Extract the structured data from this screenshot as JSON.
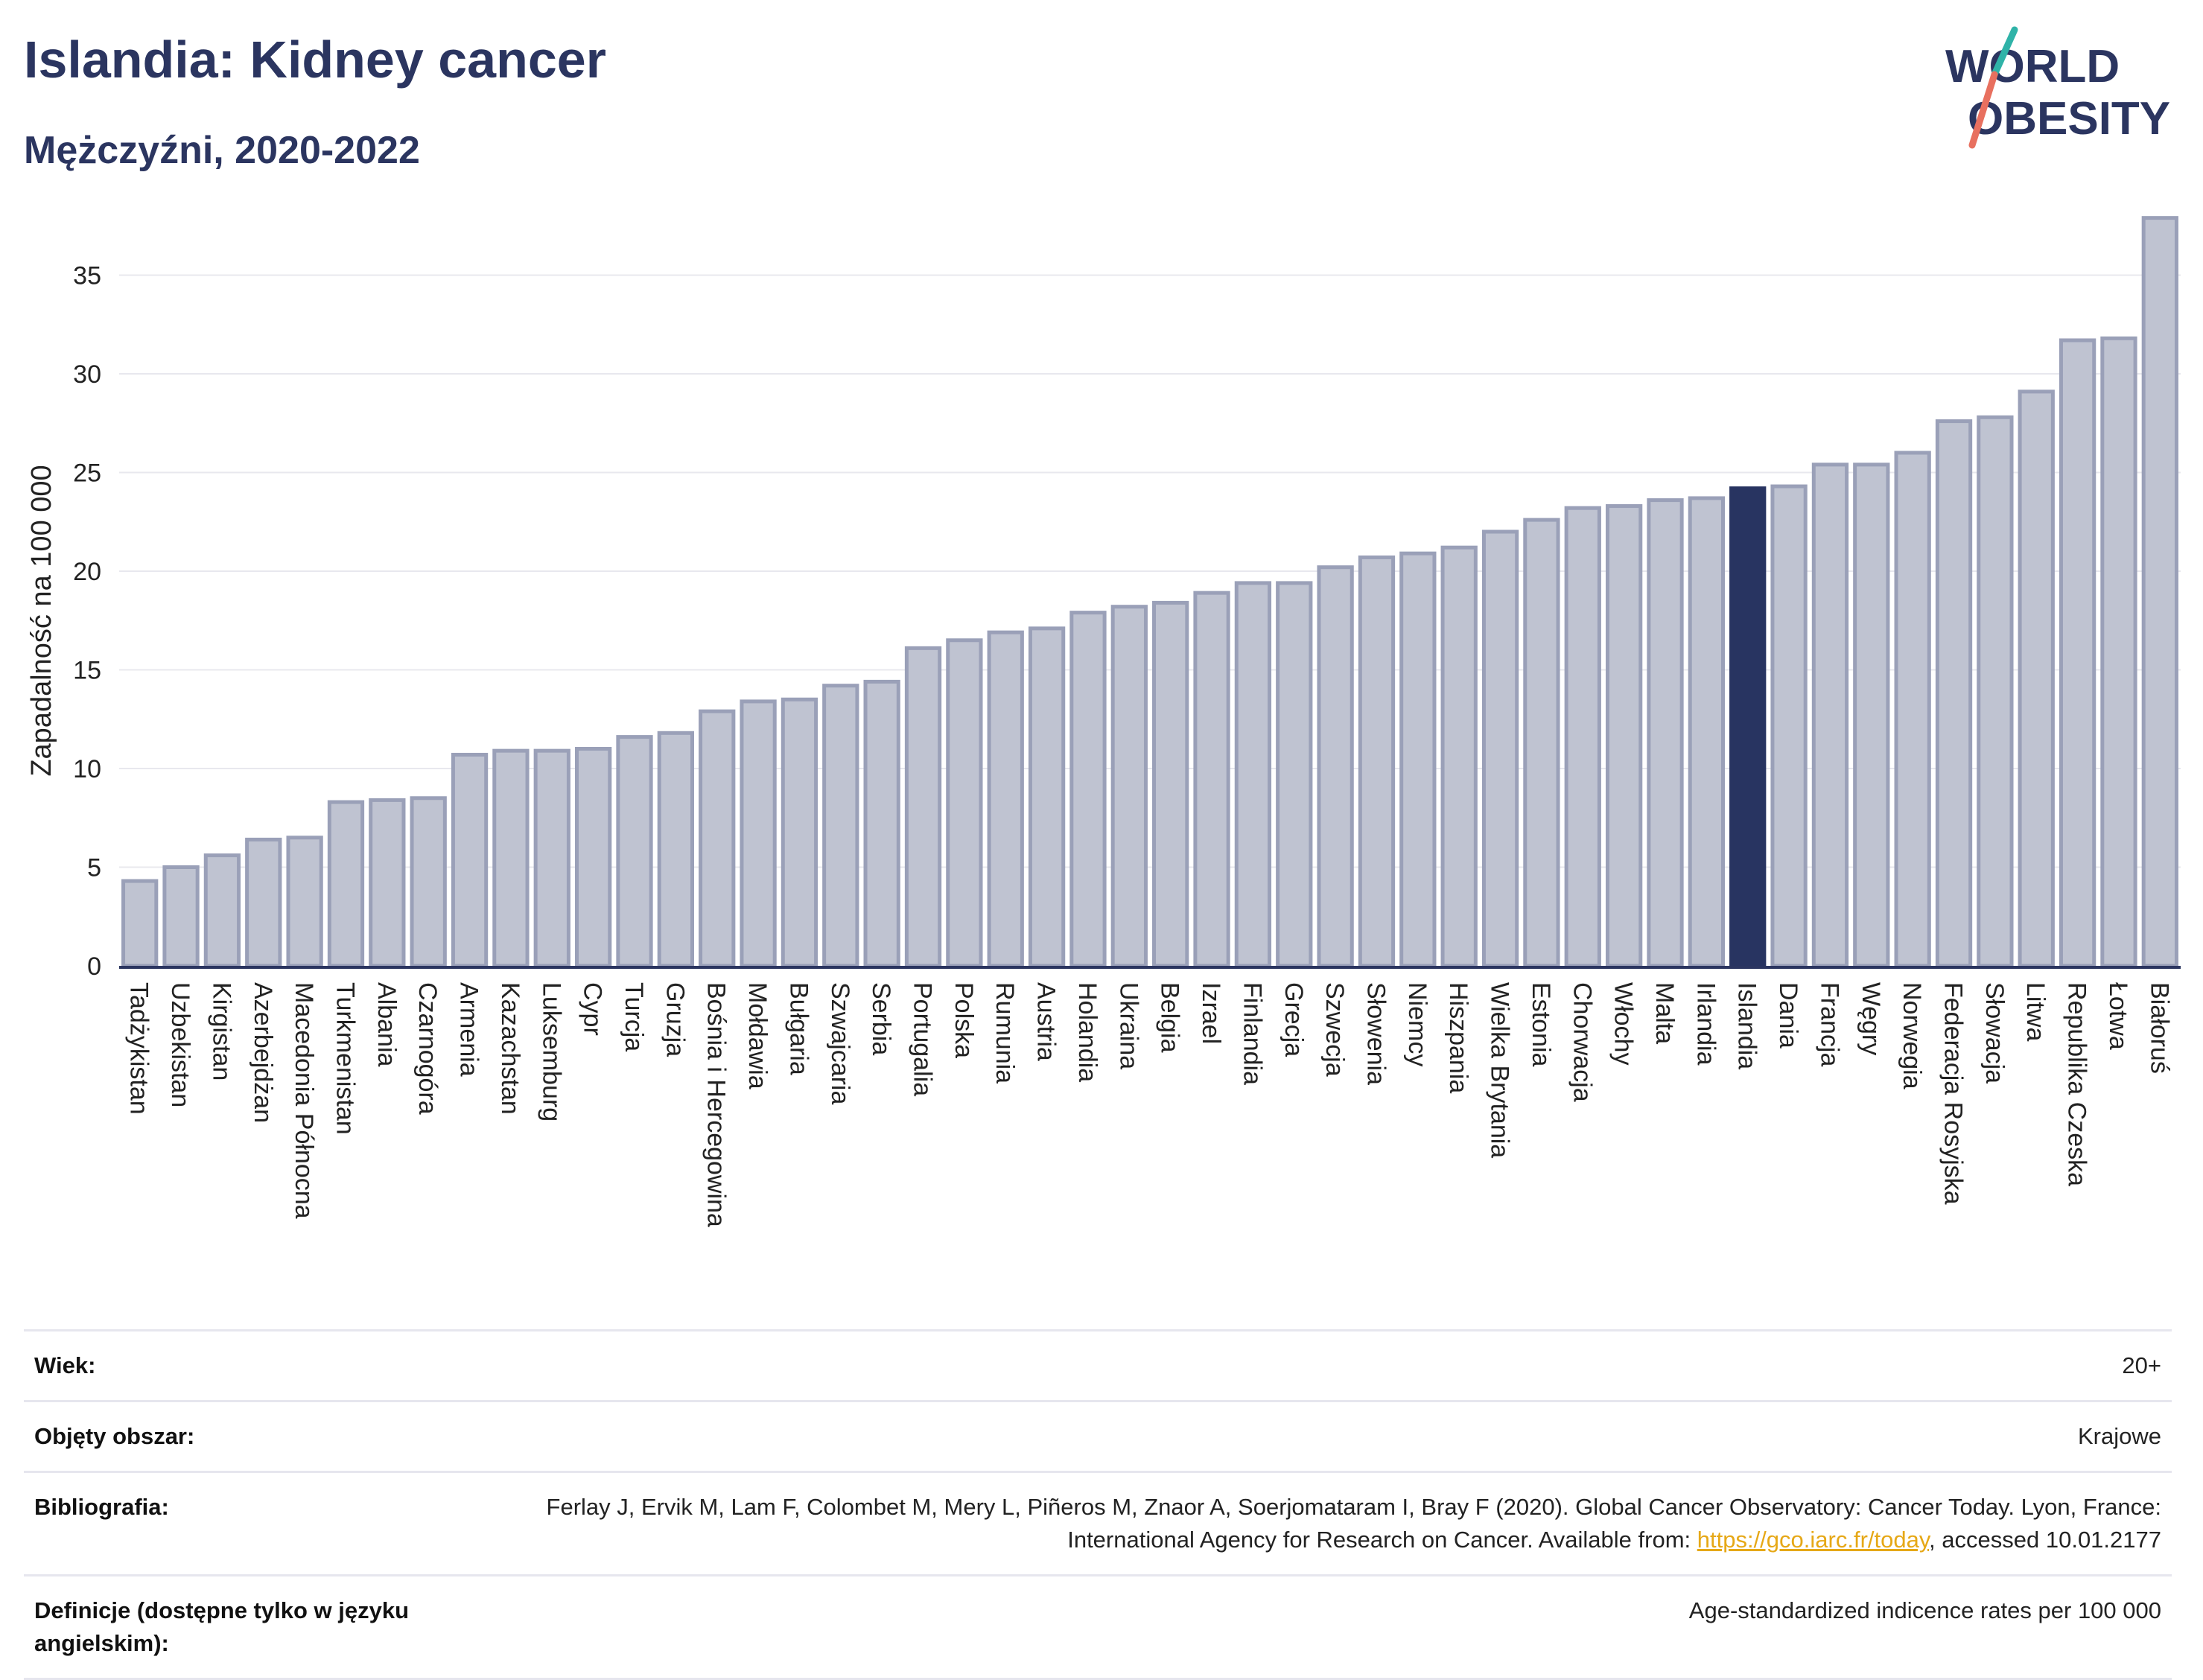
{
  "header": {
    "title": "Islandia: Kidney cancer",
    "subtitle": "Mężczyźni, 2020-2022"
  },
  "logo": {
    "line1": "WORLD",
    "line2": "OBESITY"
  },
  "colors": {
    "bar": "#bfc3d1",
    "bar_stroke": "#9aa0b8",
    "highlight": "#283461",
    "title": "#2b3560"
  },
  "chart_data": {
    "type": "bar",
    "ylabel": "Zapadalność na 100 000",
    "ylim": [
      0,
      38
    ],
    "yticks": [
      0,
      5,
      10,
      15,
      20,
      25,
      30,
      35
    ],
    "highlight": "Islandia",
    "categories": [
      "Tadżykistan",
      "Uzbekistan",
      "Kirgistan",
      "Azerbejdżan",
      "Macedonia Północna",
      "Turkmenistan",
      "Albania",
      "Czarnogóra",
      "Armenia",
      "Kazachstan",
      "Luksemburg",
      "Cypr",
      "Turcja",
      "Gruzja",
      "Bośnia i Hercegowina",
      "Mołdawia",
      "Bułgaria",
      "Szwajcaria",
      "Serbia",
      "Portugalia",
      "Polska",
      "Rumunia",
      "Austria",
      "Holandia",
      "Ukraina",
      "Belgia",
      "Izrael",
      "Finlandia",
      "Grecja",
      "Szwecja",
      "Słowenia",
      "Niemcy",
      "Hiszpania",
      "Wielka Brytania",
      "Estonia",
      "Chorwacja",
      "Włochy",
      "Malta",
      "Irlandia",
      "Islandia",
      "Dania",
      "Francja",
      "Węgry",
      "Norwegia",
      "Federacja Rosyjska",
      "Słowacja",
      "Litwa",
      "Republika Czeska",
      "Łotwa",
      "Białoruś"
    ],
    "values": [
      4.3,
      5.0,
      5.6,
      6.4,
      6.5,
      8.3,
      8.4,
      8.5,
      10.7,
      10.9,
      10.9,
      11.0,
      11.6,
      11.8,
      12.9,
      13.4,
      13.5,
      14.2,
      14.4,
      16.1,
      16.5,
      16.9,
      17.1,
      17.9,
      18.2,
      18.4,
      18.9,
      19.4,
      19.4,
      20.2,
      20.7,
      20.9,
      21.2,
      22.0,
      22.6,
      23.2,
      23.3,
      23.6,
      23.7,
      24.2,
      24.3,
      25.4,
      25.4,
      26.0,
      27.6,
      27.8,
      29.1,
      31.7,
      31.8,
      37.9
    ]
  },
  "info": {
    "rows": [
      {
        "label": "Wiek:",
        "value": "20+"
      },
      {
        "label": "Objęty obszar:",
        "value": "Krajowe"
      },
      {
        "label": "Bibliografia:",
        "value": "Ferlay J, Ervik M, Lam F, Colombet M, Mery L, Piñeros M, Znaor A, Soerjomataram I, Bray F (2020). Global Cancer Observatory: Cancer Today. Lyon, France: International Agency for Research on Cancer. Available from: ",
        "link": "https://gco.iarc.fr/today",
        "suffix": ", accessed 10.01.2177"
      },
      {
        "label": "Definicje (dostępne tylko w języku angielskim):",
        "value": "Age-standardized indicence rates per 100 000"
      }
    ]
  }
}
